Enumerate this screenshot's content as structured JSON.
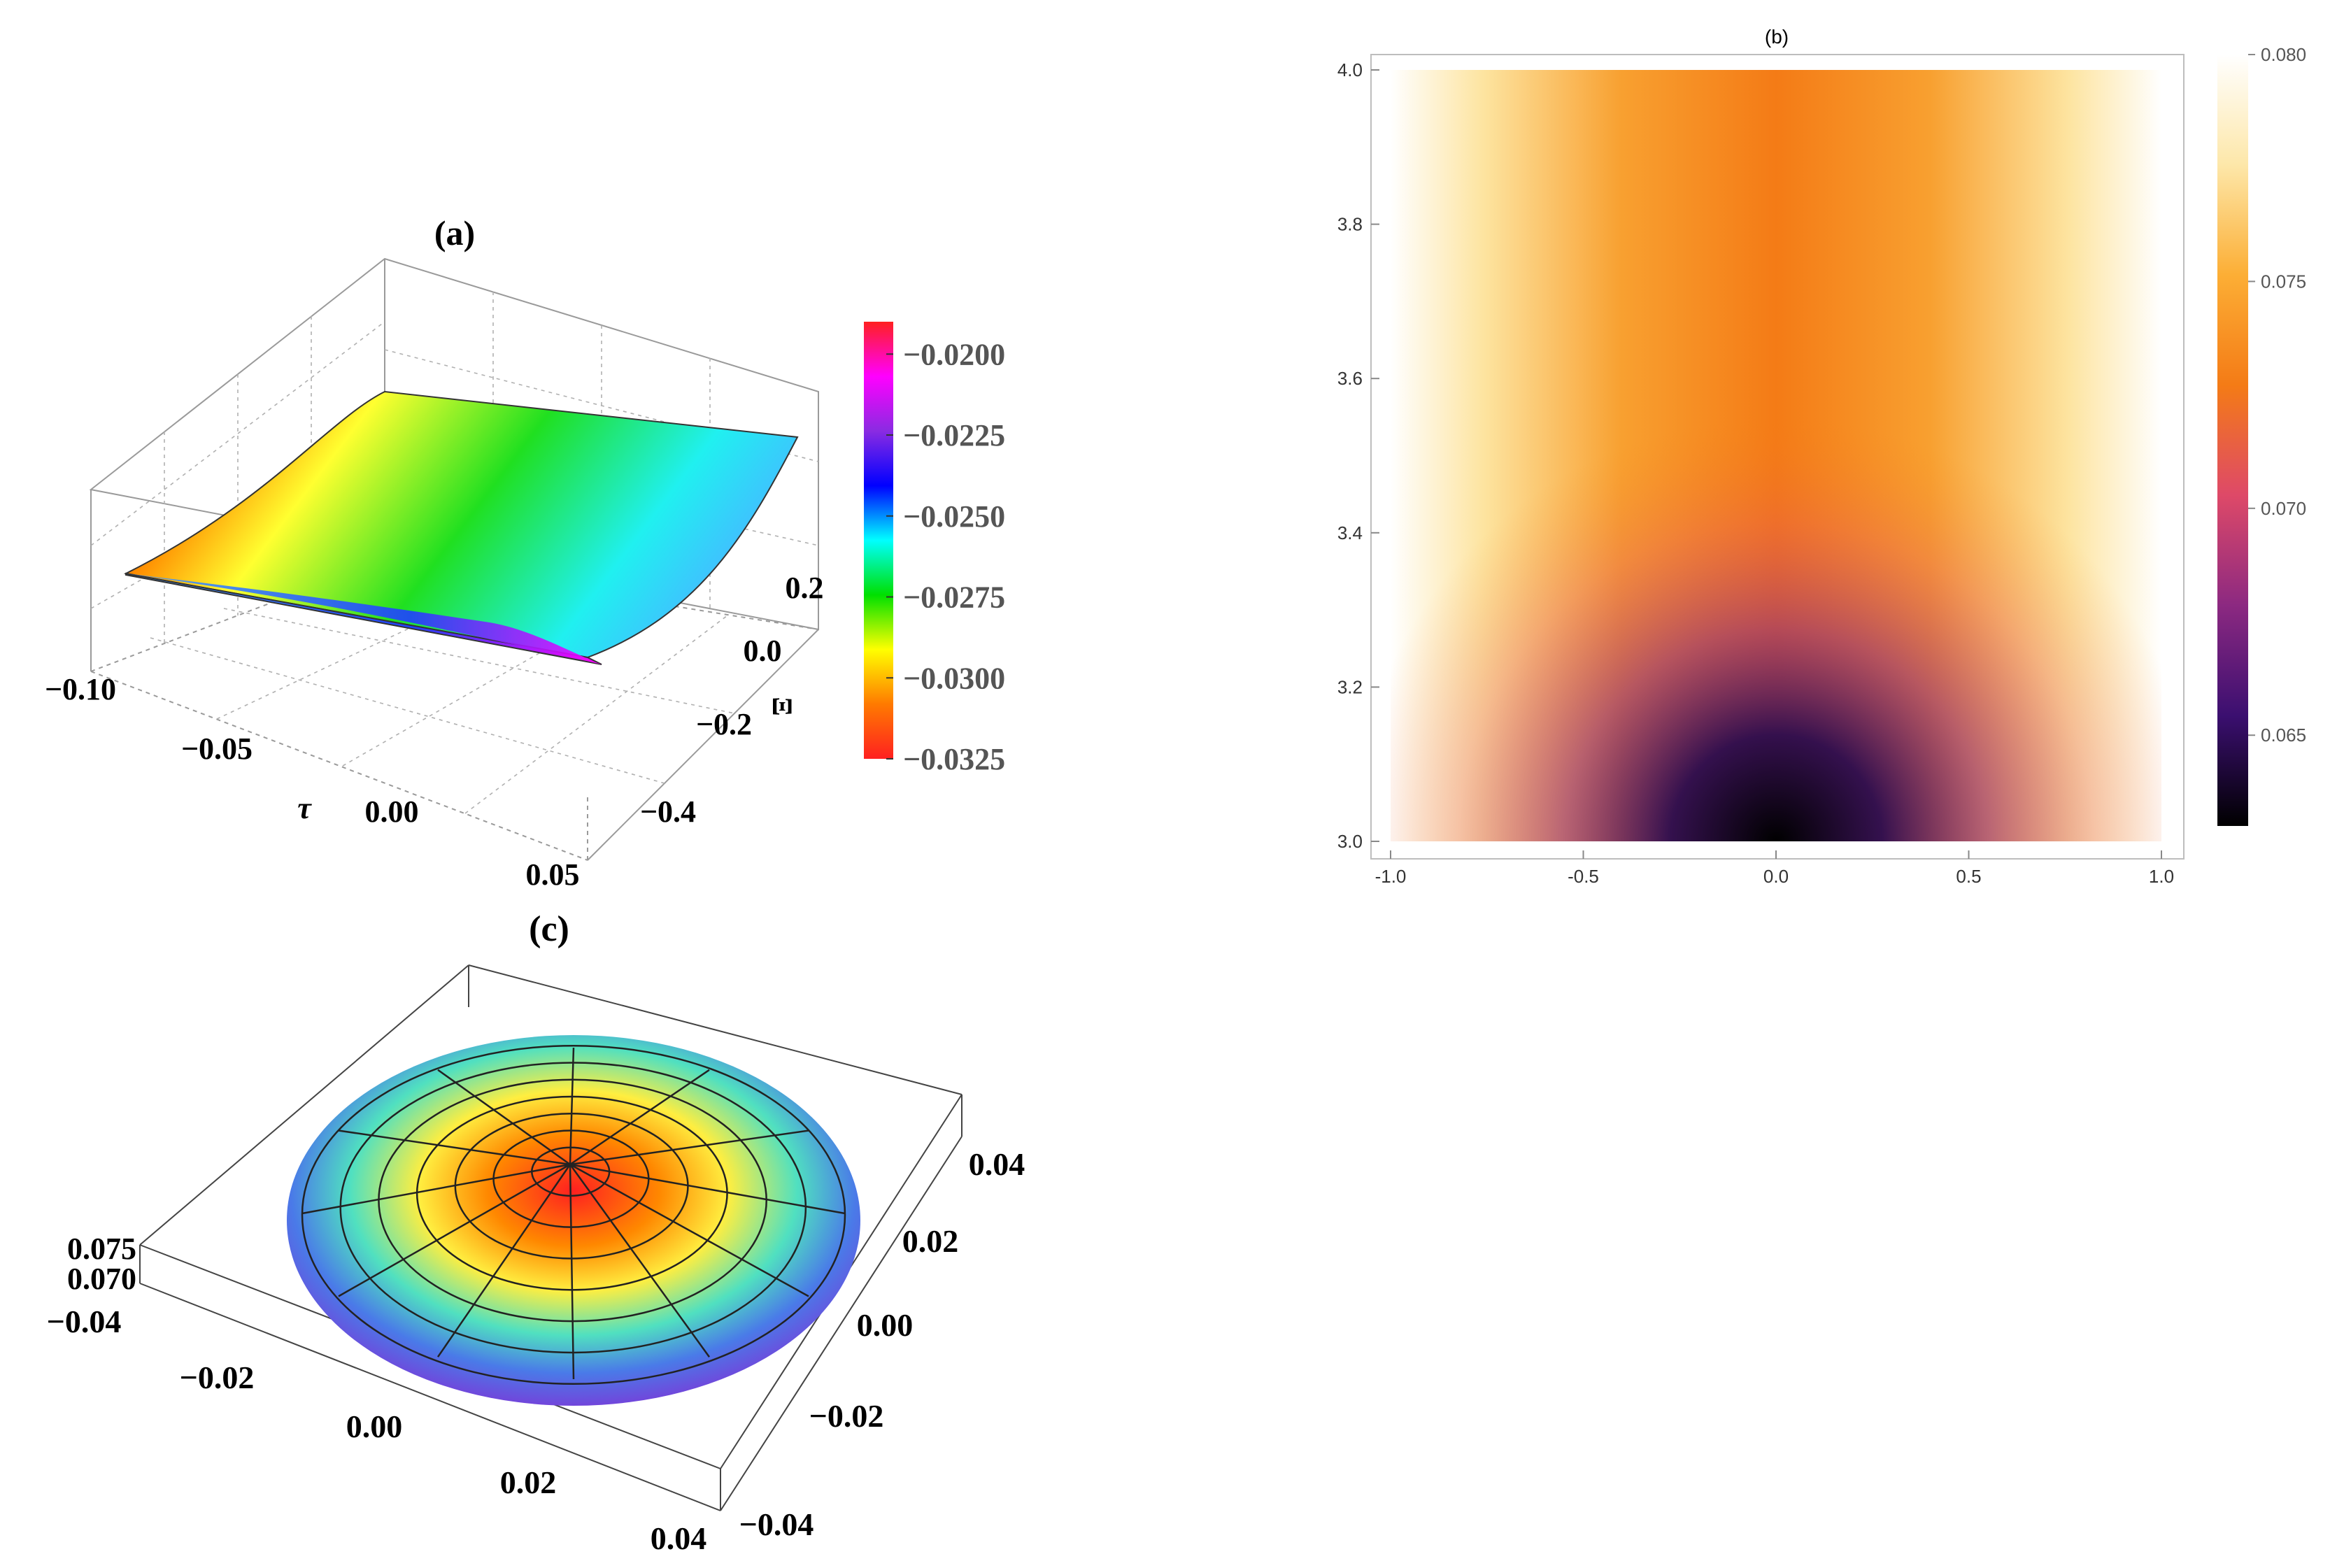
{
  "chart_data": [
    {
      "type": "surface3d",
      "title": "(a)",
      "xlabel": "τ",
      "ylabel": "Ξ",
      "x_ticks": [
        "−0.10",
        "−0.05",
        "0.00",
        "0.05"
      ],
      "y_ticks": [
        "−0.4",
        "−0.2",
        "0.0",
        "0.2"
      ],
      "xlim": [
        -0.1,
        0.05
      ],
      "ylim": [
        -0.5,
        0.3
      ],
      "zlim": [
        -0.0325,
        -0.019
      ],
      "colorbar": {
        "ticks": [
          "−0.0200",
          "−0.0225",
          "−0.0250",
          "−0.0275",
          "−0.0300",
          "−0.0325"
        ],
        "tick_values": [
          -0.02,
          -0.0225,
          -0.025,
          -0.0275,
          -0.03,
          -0.0325
        ],
        "range": [
          -0.0325,
          -0.019
        ],
        "colors": [
          "#ff2020",
          "#ff7a00",
          "#ffff00",
          "#00e000",
          "#00ffff",
          "#0000ff",
          "#8a2be2",
          "#ff00ff",
          "#ff2020"
        ]
      }
    },
    {
      "type": "heatmap",
      "title": "(b)",
      "x_ticks": [
        "-1.0",
        "-0.5",
        "0.0",
        "0.5",
        "1.0"
      ],
      "y_ticks": [
        "3.0",
        "3.2",
        "3.4",
        "3.6",
        "3.8",
        "4.0"
      ],
      "xlim": [
        -1.0,
        1.0
      ],
      "ylim": [
        3.0,
        4.0
      ],
      "colorbar": {
        "ticks": [
          "0.065",
          "0.070",
          "0.075",
          "0.080"
        ],
        "tick_values": [
          0.065,
          0.07,
          0.075,
          0.08
        ],
        "range": [
          0.063,
          0.08
        ],
        "colors": [
          "#000000",
          "#3b0f70",
          "#8c2981",
          "#de4968",
          "#f47b16",
          "#fcae35",
          "#fde7a9",
          "#ffffff"
        ]
      }
    },
    {
      "type": "surface3d",
      "title": "(c)",
      "x_ticks": [
        "−0.04",
        "−0.02",
        "0.00",
        "0.02",
        "0.04"
      ],
      "y_ticks": [
        "−0.04",
        "−0.02",
        "0.00",
        "0.02",
        "0.04"
      ],
      "z_ticks": [
        "0.070",
        "0.075"
      ],
      "colors": [
        "#ff2020",
        "#ffaa00",
        "#ffff40",
        "#40e0d0",
        "#4169e1",
        "#8a2be2"
      ]
    }
  ]
}
